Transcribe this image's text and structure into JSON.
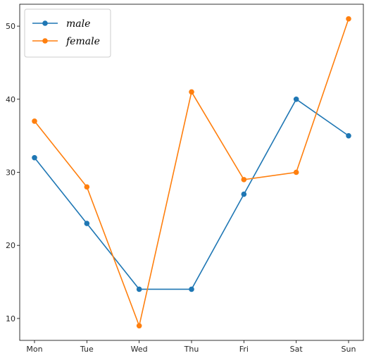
{
  "chart_data": {
    "type": "line",
    "categories": [
      "Mon",
      "Tue",
      "Wed",
      "Thu",
      "Fri",
      "Sat",
      "Sun"
    ],
    "series": [
      {
        "name": "male",
        "values": [
          32,
          23,
          14,
          14,
          27,
          40,
          35
        ],
        "color": "#1f77b4"
      },
      {
        "name": "female",
        "values": [
          37,
          28,
          9,
          41,
          29,
          30,
          51
        ],
        "color": "#ff7f0e"
      }
    ],
    "yticks": [
      10,
      20,
      30,
      40,
      50
    ],
    "ylim": [
      7,
      53
    ],
    "grid": false,
    "legend_position": "top-left",
    "marker": "circle"
  }
}
